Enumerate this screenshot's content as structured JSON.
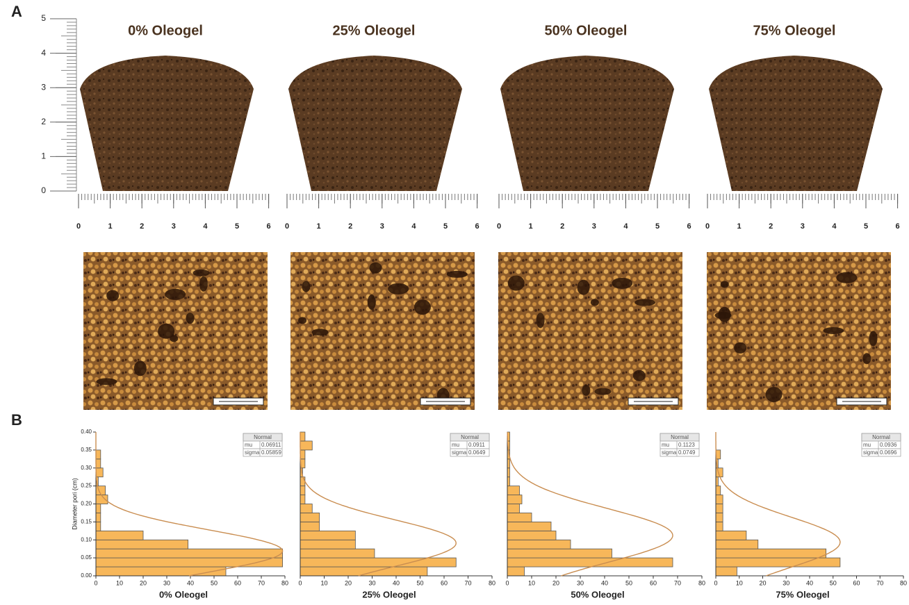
{
  "panel_a": {
    "label": "A",
    "vertical_ruler_ticks": [
      0,
      1,
      2,
      3,
      4,
      5
    ],
    "panels": [
      {
        "title": "0% Oleogel",
        "ruler_ticks": [
          0,
          1,
          2,
          3,
          4,
          5,
          6
        ]
      },
      {
        "title": "25% Oleogel",
        "ruler_ticks": [
          0,
          1,
          2,
          3,
          4,
          5,
          6
        ]
      },
      {
        "title": "50% Oleogel",
        "ruler_ticks": [
          0,
          1,
          2,
          3,
          4,
          5,
          6
        ]
      },
      {
        "title": "75% Oleogel",
        "ruler_ticks": [
          0,
          1,
          2,
          3,
          4,
          5,
          6
        ]
      }
    ]
  },
  "panel_b": {
    "label": "B"
  },
  "chart_data": [
    {
      "type": "histogram",
      "orientation": "horizontal",
      "title": "0% Oleogel",
      "ylabel": "Diameter pori (cm)",
      "bins": [
        0,
        0.025,
        0.05,
        0.075,
        0.1,
        0.125,
        0.15,
        0.175,
        0.2,
        0.225,
        0.25,
        0.275,
        0.3,
        0.325,
        0.35,
        0.375,
        0.4
      ],
      "values": [
        55,
        79,
        79,
        39,
        20,
        2,
        2,
        2,
        5,
        4,
        1,
        3,
        2,
        2,
        0,
        0
      ],
      "color": "#f7b75a",
      "xlim": [
        0,
        80
      ],
      "xticks": [
        0,
        10,
        20,
        30,
        40,
        50,
        60,
        70,
        80
      ],
      "ylim": [
        0,
        0.4
      ],
      "yticks": [
        {
          "value": 0,
          "label": "0.00"
        },
        {
          "value": 0.05,
          "label": "0.05"
        },
        {
          "value": 0.1,
          "label": "0.10"
        },
        {
          "value": 0.15,
          "label": "0.15"
        },
        {
          "value": 0.2,
          "label": "0.20"
        },
        {
          "value": 0.25,
          "label": "0.25"
        },
        {
          "value": 0.3,
          "label": "0.30"
        },
        {
          "value": 0.35,
          "label": "0.35"
        },
        {
          "value": 0.4,
          "label": "0.40"
        }
      ],
      "fit": {
        "name": "Normal",
        "mu_label": "mu",
        "mu": 0.06911,
        "sigma_label": "sigma",
        "sigma": 0.05859,
        "color": "#c98d50"
      }
    },
    {
      "type": "histogram",
      "orientation": "horizontal",
      "title": "25% Oleogel",
      "bins": [
        0,
        0.025,
        0.05,
        0.075,
        0.1,
        0.125,
        0.15,
        0.175,
        0.2,
        0.225,
        0.25,
        0.275,
        0.3,
        0.325,
        0.35,
        0.375,
        0.4
      ],
      "values": [
        53,
        65,
        31,
        23,
        23,
        8,
        8,
        5,
        2,
        2,
        2,
        1,
        2,
        2,
        5,
        2
      ],
      "color": "#f7b75a",
      "xlim": [
        0,
        80
      ],
      "xticks": [
        0,
        10,
        20,
        30,
        40,
        50,
        60,
        70,
        80
      ],
      "ylim": [
        0,
        0.4
      ],
      "fit": {
        "name": "Normal",
        "mu_label": "mu",
        "mu": 0.0911,
        "sigma_label": "sigma",
        "sigma": 0.0649,
        "color": "#c98d50"
      }
    },
    {
      "type": "histogram",
      "orientation": "horizontal",
      "title": "50% Oleogel",
      "bins": [
        0,
        0.025,
        0.05,
        0.075,
        0.1,
        0.125,
        0.15,
        0.175,
        0.2,
        0.225,
        0.25,
        0.275,
        0.3,
        0.325,
        0.35,
        0.375,
        0.4
      ],
      "values": [
        7,
        68,
        43,
        26,
        20,
        18,
        10,
        5,
        6,
        5,
        1,
        1,
        1,
        1,
        1,
        1
      ],
      "color": "#f7b75a",
      "xlim": [
        0,
        80
      ],
      "xticks": [
        0,
        10,
        20,
        30,
        40,
        50,
        60,
        70,
        80
      ],
      "ylim": [
        0,
        0.4
      ],
      "fit": {
        "name": "Normal",
        "mu_label": "mu",
        "mu": 0.1123,
        "sigma_label": "sigma",
        "sigma": 0.0749,
        "color": "#c98d50"
      }
    },
    {
      "type": "histogram",
      "orientation": "horizontal",
      "title": "75% Oleogel",
      "bins": [
        0,
        0.025,
        0.05,
        0.075,
        0.1,
        0.125,
        0.15,
        0.175,
        0.2,
        0.225,
        0.25,
        0.275,
        0.3,
        0.325,
        0.35,
        0.375,
        0.4
      ],
      "values": [
        9,
        53,
        47,
        18,
        13,
        3,
        3,
        3,
        3,
        2,
        1,
        3,
        1,
        2,
        0,
        0
      ],
      "color": "#f7b75a",
      "xlim": [
        0,
        80
      ],
      "xticks": [
        0,
        10,
        20,
        30,
        40,
        50,
        60,
        70,
        80
      ],
      "ylim": [
        0,
        0.4
      ],
      "fit": {
        "name": "Normal",
        "mu_label": "mu",
        "mu": 0.0936,
        "sigma_label": "sigma",
        "sigma": 0.0696,
        "color": "#c98d50"
      }
    }
  ]
}
